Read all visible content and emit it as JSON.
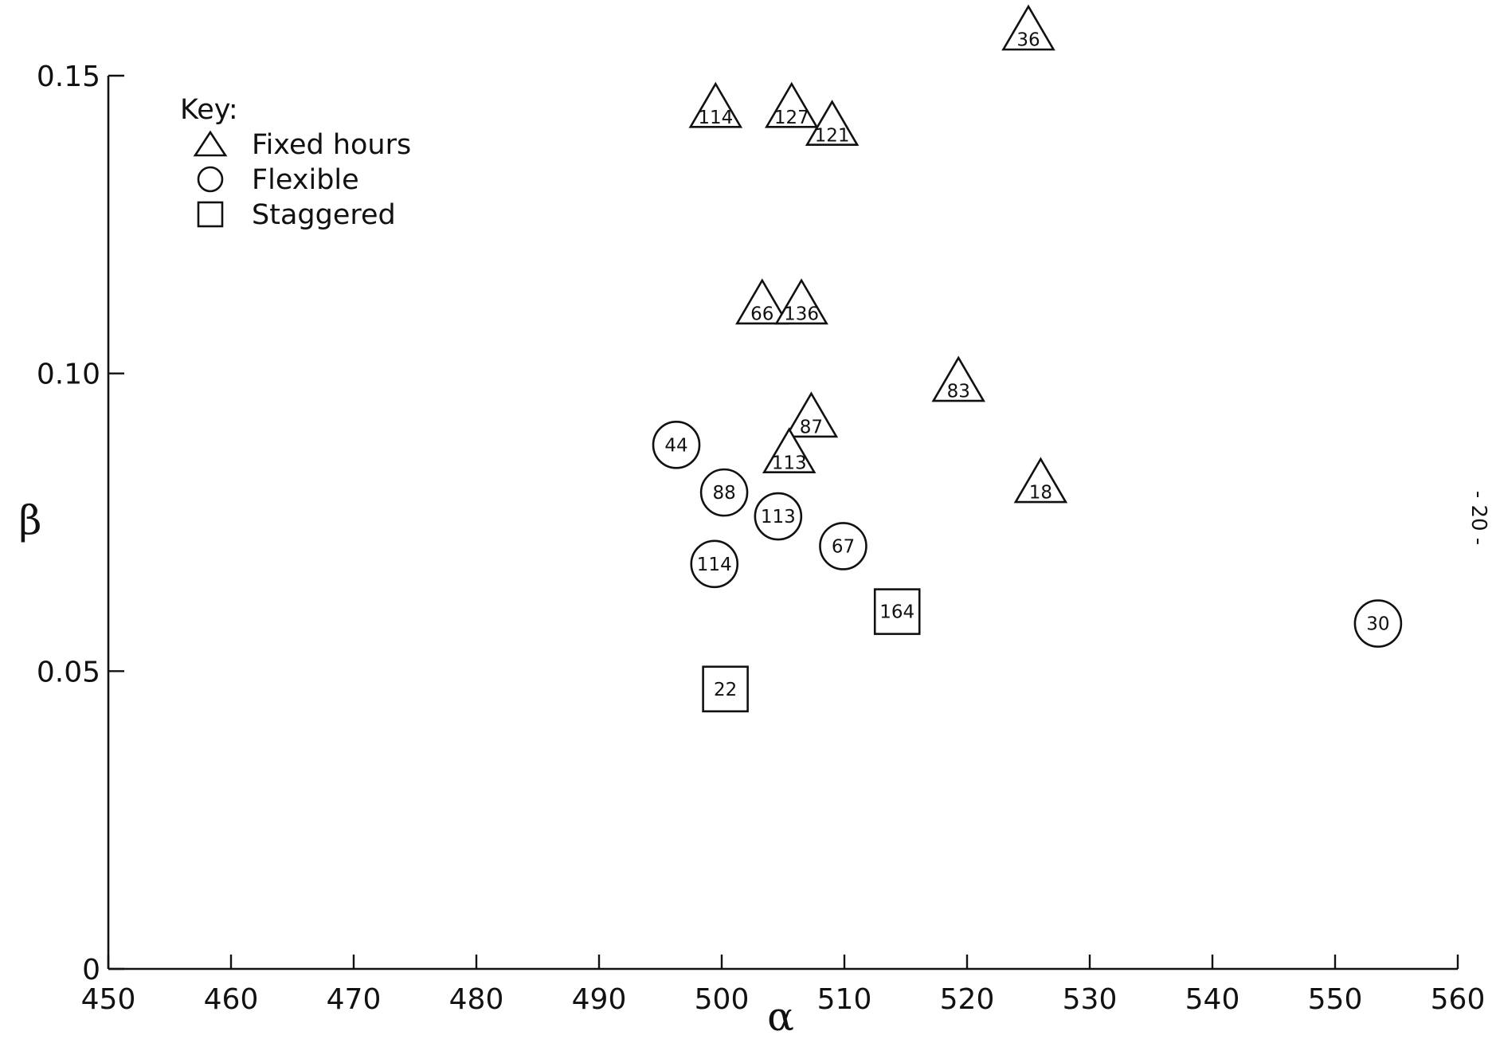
{
  "page_number": "- 20 -",
  "chart_data": {
    "type": "scatter",
    "title": "",
    "xlabel": "α",
    "ylabel": "β",
    "xlim": [
      450,
      560
    ],
    "ylim": [
      0,
      0.15
    ],
    "xticks": [
      450,
      460,
      470,
      480,
      490,
      500,
      510,
      520,
      530,
      540,
      550,
      560
    ],
    "xtick_labels": [
      "450",
      "460",
      "470",
      "480",
      "490",
      "500",
      "510",
      "520",
      "530",
      "540",
      "550",
      "560"
    ],
    "yticks": [
      0,
      0.05,
      0.1,
      0.15
    ],
    "ytick_labels": [
      "0",
      "0.05",
      "0.10",
      "0.15"
    ],
    "grid": false,
    "legend": {
      "title": "Key:",
      "position": "top-left",
      "entries": [
        {
          "marker": "triangle",
          "label": "Fixed hours"
        },
        {
          "marker": "circle",
          "label": "Flexible"
        },
        {
          "marker": "square",
          "label": "Staggered"
        }
      ]
    },
    "series": [
      {
        "name": "Fixed hours",
        "marker": "triangle",
        "points": [
          {
            "x": 525.0,
            "y": 0.157,
            "label": "36"
          },
          {
            "x": 499.5,
            "y": 0.144,
            "label": "114"
          },
          {
            "x": 505.7,
            "y": 0.144,
            "label": "127"
          },
          {
            "x": 509.0,
            "y": 0.141,
            "label": "121"
          },
          {
            "x": 503.3,
            "y": 0.111,
            "label": "66"
          },
          {
            "x": 506.5,
            "y": 0.111,
            "label": "136"
          },
          {
            "x": 519.3,
            "y": 0.098,
            "label": "83"
          },
          {
            "x": 507.3,
            "y": 0.092,
            "label": "87"
          },
          {
            "x": 505.5,
            "y": 0.086,
            "label": "113"
          },
          {
            "x": 526.0,
            "y": 0.081,
            "label": "18"
          }
        ]
      },
      {
        "name": "Flexible",
        "marker": "circle",
        "points": [
          {
            "x": 496.3,
            "y": 0.088,
            "label": "44"
          },
          {
            "x": 500.2,
            "y": 0.08,
            "label": "88"
          },
          {
            "x": 504.6,
            "y": 0.076,
            "label": "113"
          },
          {
            "x": 499.4,
            "y": 0.068,
            "label": "114"
          },
          {
            "x": 509.9,
            "y": 0.071,
            "label": "67"
          },
          {
            "x": 553.5,
            "y": 0.058,
            "label": "30"
          }
        ]
      },
      {
        "name": "Staggered",
        "marker": "square",
        "points": [
          {
            "x": 514.3,
            "y": 0.06,
            "label": "164"
          },
          {
            "x": 500.3,
            "y": 0.047,
            "label": "22"
          }
        ]
      }
    ]
  }
}
